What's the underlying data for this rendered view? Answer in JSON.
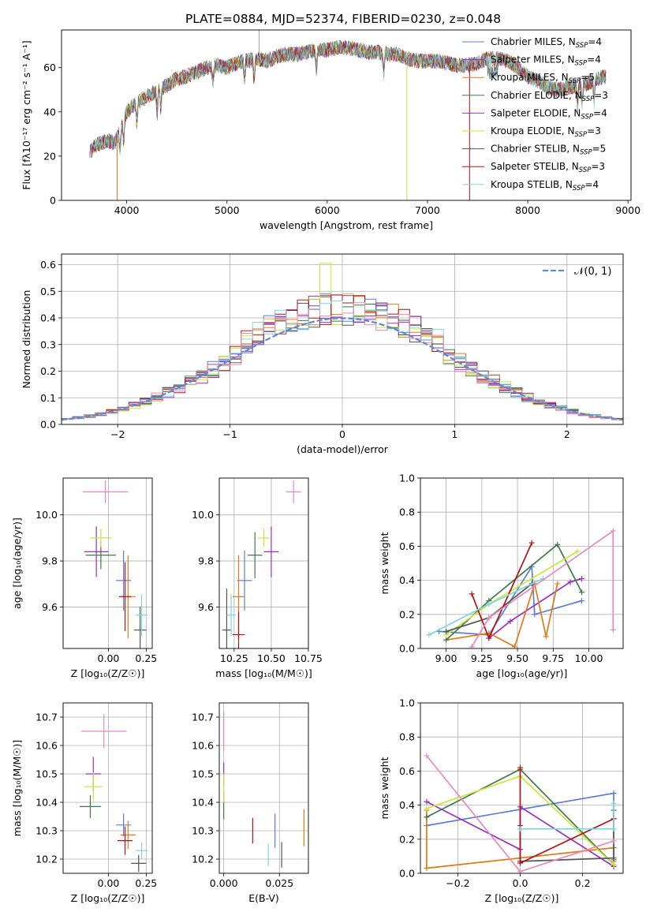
{
  "figure_title": "PLATE=0884, MJD=52374, FIBERID=0230, z=0.048",
  "colors": {
    "chabrier_miles": "#5b7fd6",
    "salpeter_miles": "#9a2fc0",
    "kroupa_miles": "#e07a1a",
    "chabrier_elodie": "#3f7a46",
    "salpeter_elodie": "#9a2fc0",
    "kroupa_elodie": "#c9e63c",
    "chabrier_stelib": "#555555",
    "salpeter_stelib": "#b01515",
    "kroupa_stelib": "#7fd6dc",
    "pink": "#e88ab8",
    "normal_curve": "#5b8ad8",
    "grid": "#b0b0b0"
  },
  "chart_data": [
    {
      "id": "spectrum",
      "type": "line",
      "xlabel": "wavelength [Angstrom, rest frame]",
      "ylabel": "Flux [fλ10⁻¹⁷ erg cm⁻² s⁻¹ A⁻¹]",
      "xlim": [
        3350,
        9030
      ],
      "ylim": [
        0,
        77
      ],
      "xticks": [
        4000,
        5000,
        6000,
        7000,
        8000,
        9000
      ],
      "yticks": [
        0,
        20,
        40,
        60
      ],
      "grid": false,
      "legend_position": "top-right",
      "legend": [
        {
          "label": "Chabrier MILES, N",
          "sub": "SSP",
          "eq": "=4",
          "color": "#5b7fd6"
        },
        {
          "label": "Salpeter MILES, N",
          "sub": "SSP",
          "eq": "=4",
          "color": "#9a2fc0"
        },
        {
          "label": "Kroupa MILES, N",
          "sub": "SSP",
          "eq": "=5",
          "color": "#e07a1a"
        },
        {
          "label": "Chabrier ELODIE, N",
          "sub": "SSP",
          "eq": "=3",
          "color": "#3f7a46"
        },
        {
          "label": "Salpeter ELODIE, N",
          "sub": "SSP",
          "eq": "=4",
          "color": "#9a2fc0"
        },
        {
          "label": "Kroupa ELODIE, N",
          "sub": "SSP",
          "eq": "=3",
          "color": "#c9e63c"
        },
        {
          "label": "Chabrier STELIB, N",
          "sub": "SSP",
          "eq": "=5",
          "color": "#555555"
        },
        {
          "label": "Salpeter STELIB, N",
          "sub": "SSP",
          "eq": "=3",
          "color": "#b01515"
        },
        {
          "label": "Kroupa STELIB, N",
          "sub": "SSP",
          "eq": "=4",
          "color": "#7fd6dc"
        }
      ],
      "envelope": {
        "x": [
          3630,
          3700,
          3800,
          3880,
          3950,
          4000,
          4100,
          4200,
          4300,
          4400,
          4500,
          4600,
          4700,
          4800,
          4900,
          5000,
          5100,
          5200,
          5300,
          5400,
          5500,
          5600,
          5700,
          5800,
          5900,
          6000,
          6100,
          6200,
          6300,
          6400,
          6500,
          6600,
          6700,
          6800,
          6900,
          7000,
          7100,
          7200,
          7300,
          7400,
          7500,
          7600,
          7700,
          7800,
          7900,
          8000,
          8100,
          8200,
          8300,
          8400,
          8500,
          8600,
          8700,
          8780
        ],
        "y": [
          22,
          25,
          27,
          26,
          33,
          40,
          44,
          47,
          49,
          52,
          55,
          56,
          58,
          60,
          61,
          60,
          62,
          63,
          64,
          63,
          65,
          66,
          66,
          67,
          68,
          68,
          69,
          69,
          68,
          67,
          67,
          66,
          66,
          64,
          63,
          63,
          63,
          62,
          61,
          61,
          62,
          64,
          64,
          63,
          60,
          56,
          54,
          51,
          50,
          51,
          52,
          53,
          55,
          56
        ]
      },
      "dips": [
        3905,
        6795,
        7420
      ]
    },
    {
      "id": "residuals",
      "type": "line",
      "xlabel": "(data-model)/error",
      "ylabel": "Normed distribution",
      "xlim": [
        -2.5,
        2.5
      ],
      "ylim": [
        0,
        0.64
      ],
      "xticks": [
        -2,
        -1,
        0,
        1,
        2
      ],
      "yticks": [
        0.0,
        0.1,
        0.2,
        0.3,
        0.4,
        0.5,
        0.6
      ],
      "grid": true,
      "legend_position": "top-right",
      "normal_label": "𝒩(0, 1)",
      "bin_width": 0.1
    },
    {
      "id": "age_vs_z",
      "type": "scatter",
      "xlabel": "Z [log₁₀(Z/Z☉)]",
      "ylabel": "age  [log₁₀(age/yr)]",
      "xlim": [
        -0.3,
        0.29
      ],
      "ylim": [
        9.42,
        10.16
      ],
      "xticks": [
        0.0,
        0.25
      ],
      "yticks": [
        9.6,
        9.8,
        10.0
      ],
      "grid": true,
      "points": [
        {
          "x": 0.1,
          "y": 9.715,
          "ex": 0.05,
          "ey": 0.13,
          "color": "#5b7fd6"
        },
        {
          "x": -0.08,
          "y": 9.84,
          "ex": 0.08,
          "ey": 0.11,
          "color": "#9a2fc0"
        },
        {
          "x": 0.13,
          "y": 9.645,
          "ex": 0.05,
          "ey": 0.18,
          "color": "#e07a1a"
        },
        {
          "x": -0.05,
          "y": 9.825,
          "ex": 0.1,
          "ey": 0.06,
          "color": "#3f7a46"
        },
        {
          "x": -0.05,
          "y": 9.9,
          "ex": 0.07,
          "ey": 0.04,
          "color": "#c9e63c"
        },
        {
          "x": 0.21,
          "y": 9.5,
          "ex": 0.04,
          "ey": 0.1,
          "color": "#555555"
        },
        {
          "x": 0.11,
          "y": 9.645,
          "ex": 0.04,
          "ey": 0.15,
          "color": "#b01515"
        },
        {
          "x": 0.22,
          "y": 9.565,
          "ex": 0.04,
          "ey": 0.09,
          "color": "#7fd6dc"
        },
        {
          "x": -0.02,
          "y": 10.1,
          "ex": 0.15,
          "ey": 0.05,
          "color": "#e88ab8"
        }
      ]
    },
    {
      "id": "age_vs_mass",
      "type": "scatter",
      "xlabel": "mass [log₁₀(M/M☉)]",
      "ylabel": "",
      "xlim": [
        10.15,
        10.75
      ],
      "ylim": [
        9.42,
        10.16
      ],
      "xticks": [
        10.25,
        10.5,
        10.75
      ],
      "yticks": [
        9.6,
        9.8,
        10.0
      ],
      "grid": true,
      "points": [
        {
          "x": 10.32,
          "y": 9.715,
          "ex": 0.05,
          "ey": 0.13,
          "color": "#5b7fd6"
        },
        {
          "x": 10.5,
          "y": 9.84,
          "ex": 0.05,
          "ey": 0.11,
          "color": "#9a2fc0"
        },
        {
          "x": 10.28,
          "y": 9.645,
          "ex": 0.04,
          "ey": 0.18,
          "color": "#e07a1a"
        },
        {
          "x": 10.39,
          "y": 9.825,
          "ex": 0.05,
          "ey": 0.1,
          "color": "#3f7a46"
        },
        {
          "x": 10.45,
          "y": 9.9,
          "ex": 0.04,
          "ey": 0.04,
          "color": "#c9e63c"
        },
        {
          "x": 10.2,
          "y": 9.5,
          "ex": 0.03,
          "ey": 0.18,
          "color": "#555555"
        },
        {
          "x": 10.28,
          "y": 9.48,
          "ex": 0.04,
          "ey": 0.1,
          "color": "#b01515"
        },
        {
          "x": 10.23,
          "y": 9.565,
          "ex": 0.03,
          "ey": 0.09,
          "color": "#7fd6dc"
        },
        {
          "x": 10.65,
          "y": 10.1,
          "ex": 0.05,
          "ey": 0.05,
          "color": "#e88ab8"
        }
      ]
    },
    {
      "id": "mass_weight_vs_age",
      "type": "line",
      "xlabel": "age  [log₁₀(age/yr)]",
      "ylabel": "mass weight",
      "xlim": [
        8.82,
        10.24
      ],
      "ylim": [
        0,
        1
      ],
      "xticks": [
        9.0,
        9.25,
        9.5,
        9.75,
        10.0
      ],
      "yticks": [
        0.0,
        0.2,
        0.4,
        0.6,
        0.8,
        1.0
      ],
      "grid": true,
      "series": [
        {
          "color": "#5b7fd6",
          "x": [
            8.95,
            9.3,
            9.6,
            9.62,
            9.95
          ],
          "y": [
            0.1,
            0.08,
            0.48,
            0.2,
            0.28
          ]
        },
        {
          "color": "#9a2fc0",
          "x": [
            9.3,
            9.45,
            9.87,
            9.95
          ],
          "y": [
            0.06,
            0.16,
            0.39,
            0.41
          ]
        },
        {
          "color": "#e07a1a",
          "x": [
            9.0,
            9.3,
            9.48,
            9.62,
            9.7,
            9.78
          ],
          "y": [
            0.05,
            0.09,
            0.01,
            0.38,
            0.07,
            0.38
          ]
        },
        {
          "color": "#3f7a46",
          "x": [
            9.0,
            9.3,
            9.78,
            9.95
          ],
          "y": [
            0.05,
            0.28,
            0.61,
            0.33
          ]
        },
        {
          "color": "#c9e63c",
          "x": [
            9.0,
            9.3,
            9.92
          ],
          "y": [
            0.08,
            0.26,
            0.57
          ]
        },
        {
          "color": "#555555",
          "x": [
            9.0,
            9.3,
            9.6
          ],
          "y": [
            0.1,
            0.18,
            0.38
          ]
        },
        {
          "color": "#b01515",
          "x": [
            9.18,
            9.3,
            9.6
          ],
          "y": [
            0.32,
            0.06,
            0.62
          ]
        },
        {
          "color": "#7fd6dc",
          "x": [
            8.88,
            9.3,
            9.68
          ],
          "y": [
            0.08,
            0.26,
            0.41
          ]
        },
        {
          "color": "#e88ab8",
          "x": [
            9.18,
            9.3,
            10.17,
            10.17
          ],
          "y": [
            0.01,
            0.18,
            0.69,
            0.11
          ]
        }
      ]
    },
    {
      "id": "mass_vs_z",
      "type": "scatter",
      "xlabel": "Z [log₁₀(Z/Z☉)]",
      "ylabel": "mass [log₁₀(M/M☉)]",
      "xlim": [
        -0.3,
        0.29
      ],
      "ylim": [
        10.15,
        10.75
      ],
      "xticks": [
        0.0,
        0.25
      ],
      "yticks": [
        10.2,
        10.3,
        10.4,
        10.5,
        10.6,
        10.7
      ],
      "grid": true,
      "points": [
        {
          "x": 0.1,
          "y": 10.32,
          "ex": 0.05,
          "ey": 0.04,
          "color": "#5b7fd6"
        },
        {
          "x": -0.1,
          "y": 10.5,
          "ex": 0.05,
          "ey": 0.06,
          "color": "#9a2fc0"
        },
        {
          "x": 0.13,
          "y": 10.285,
          "ex": 0.05,
          "ey": 0.05,
          "color": "#e07a1a"
        },
        {
          "x": -0.12,
          "y": 10.385,
          "ex": 0.07,
          "ey": 0.04,
          "color": "#3f7a46"
        },
        {
          "x": -0.1,
          "y": 10.455,
          "ex": 0.06,
          "ey": 0.05,
          "color": "#c9e63c"
        },
        {
          "x": 0.2,
          "y": 10.185,
          "ex": 0.05,
          "ey": 0.03,
          "color": "#555555"
        },
        {
          "x": 0.11,
          "y": 10.265,
          "ex": 0.05,
          "ey": 0.05,
          "color": "#b01515"
        },
        {
          "x": 0.22,
          "y": 10.23,
          "ex": 0.04,
          "ey": 0.03,
          "color": "#7fd6dc"
        },
        {
          "x": -0.03,
          "y": 10.65,
          "ex": 0.15,
          "ey": 0.06,
          "color": "#e88ab8"
        }
      ]
    },
    {
      "id": "mass_vs_ebv",
      "type": "scatter",
      "xlabel": "E(B-V)",
      "ylabel": "",
      "xlim": [
        -0.002,
        0.038
      ],
      "ylim": [
        10.15,
        10.75
      ],
      "xticks": [
        0.0,
        0.025
      ],
      "yticks": [
        10.2,
        10.3,
        10.4,
        10.5,
        10.6,
        10.7
      ],
      "grid": true,
      "points": [
        {
          "x": 0.023,
          "y": 10.3,
          "ex": 0,
          "ey": 0.06,
          "color": "#5b7fd6"
        },
        {
          "x": 0.0,
          "y": 10.5,
          "ex": 0,
          "ey": 0.04,
          "color": "#9a2fc0"
        },
        {
          "x": 0.036,
          "y": 10.31,
          "ex": 0,
          "ey": 0.065,
          "color": "#e07a1a"
        },
        {
          "x": 0.0,
          "y": 10.39,
          "ex": 0,
          "ey": 0.05,
          "color": "#3f7a46"
        },
        {
          "x": 0.0,
          "y": 10.45,
          "ex": 0,
          "ey": 0.05,
          "color": "#c9e63c"
        },
        {
          "x": 0.026,
          "y": 10.215,
          "ex": 0,
          "ey": 0.045,
          "color": "#555555"
        },
        {
          "x": 0.013,
          "y": 10.3,
          "ex": 0,
          "ey": 0.045,
          "color": "#b01515"
        },
        {
          "x": 0.02,
          "y": 10.215,
          "ex": 0,
          "ey": 0.04,
          "color": "#7fd6dc"
        },
        {
          "x": 0.0,
          "y": 10.65,
          "ex": 0,
          "ey": 0.07,
          "color": "#e88ab8"
        }
      ]
    },
    {
      "id": "mass_weight_vs_z",
      "type": "line",
      "xlabel": "Z [log₁₀(Z/Z☉)]",
      "ylabel": "mass weight",
      "xlim": [
        -0.32,
        0.33
      ],
      "ylim": [
        0,
        1
      ],
      "xticks": [
        -0.2,
        0.0,
        0.2
      ],
      "yticks": [
        0.0,
        0.2,
        0.4,
        0.6,
        0.8,
        1.0
      ],
      "grid": true,
      "series": [
        {
          "color": "#5b7fd6",
          "x": [
            -0.3,
            0.3,
            0.3
          ],
          "y": [
            0.28,
            0.47,
            0.08
          ]
        },
        {
          "color": "#9a2fc0",
          "x": [
            -0.3,
            0.0,
            0.0,
            0.3
          ],
          "y": [
            0.42,
            0.14,
            0.39,
            0.04
          ]
        },
        {
          "color": "#e07a1a",
          "x": [
            -0.3,
            -0.3,
            0.3,
            0.3
          ],
          "y": [
            0.37,
            0.03,
            0.15,
            0.07
          ]
        },
        {
          "color": "#3f7a46",
          "x": [
            -0.3,
            0.0,
            0.3
          ],
          "y": [
            0.33,
            0.61,
            0.05
          ]
        },
        {
          "color": "#c9e63c",
          "x": [
            -0.3,
            0.0,
            0.3
          ],
          "y": [
            0.38,
            0.57,
            0.05
          ]
        },
        {
          "color": "#555555",
          "x": [
            0.0,
            0.0,
            0.3,
            0.3
          ],
          "y": [
            0.28,
            0.07,
            0.09,
            0.37
          ]
        },
        {
          "color": "#b01515",
          "x": [
            0.0,
            0.0,
            0.3
          ],
          "y": [
            0.62,
            0.06,
            0.32
          ]
        },
        {
          "color": "#7fd6dc",
          "x": [
            0.0,
            0.3,
            0.3
          ],
          "y": [
            0.26,
            0.26,
            0.41
          ]
        },
        {
          "color": "#e88ab8",
          "x": [
            -0.3,
            0.0,
            0.3
          ],
          "y": [
            0.69,
            0.01,
            0.19
          ]
        }
      ]
    }
  ]
}
